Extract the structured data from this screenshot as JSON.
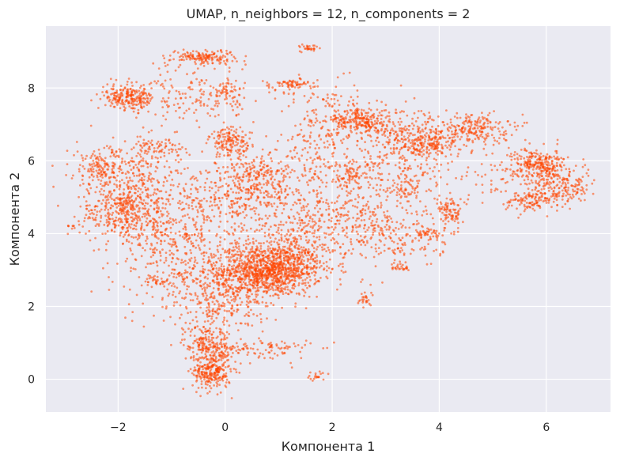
{
  "chart_data": {
    "type": "scatter",
    "title": "UMAP, n_neighbors = 12, n_components = 2",
    "xlabel": "Компонента 1",
    "ylabel": "Компонента 2",
    "xlim": [
      -3.35,
      7.2
    ],
    "ylim": [
      -0.9,
      9.7
    ],
    "x_ticks": [
      -2,
      0,
      2,
      4,
      6
    ],
    "y_ticks": [
      0,
      2,
      4,
      6,
      8
    ],
    "x_tick_labels": [
      "−2",
      "0",
      "2",
      "4",
      "6"
    ],
    "y_tick_labels": [
      "0",
      "2",
      "4",
      "6",
      "8"
    ],
    "grid": true,
    "legend": "none",
    "style": {
      "background": "#eaeaf2",
      "grid_color": "#ffffff",
      "point_color": "#ff4500",
      "point_alpha": 0.55
    },
    "clusters": [
      {
        "x": 0.9,
        "y": 3.0,
        "sx": 0.45,
        "sy": 0.35,
        "n": 900
      },
      {
        "x": 0.2,
        "y": 2.9,
        "sx": 0.6,
        "sy": 0.5,
        "n": 500
      },
      {
        "x": -0.25,
        "y": 0.2,
        "sx": 0.18,
        "sy": 0.25,
        "n": 260
      },
      {
        "x": -0.35,
        "y": 1.0,
        "sx": 0.22,
        "sy": 0.25,
        "n": 180
      },
      {
        "x": 0.6,
        "y": 0.8,
        "sx": 0.5,
        "sy": 0.18,
        "n": 120
      },
      {
        "x": -0.1,
        "y": 1.9,
        "sx": 0.45,
        "sy": 0.35,
        "n": 120
      },
      {
        "x": -2.0,
        "y": 4.6,
        "sx": 0.35,
        "sy": 0.35,
        "n": 260
      },
      {
        "x": -2.3,
        "y": 5.8,
        "sx": 0.3,
        "sy": 0.3,
        "n": 180
      },
      {
        "x": -1.6,
        "y": 5.2,
        "sx": 0.45,
        "sy": 0.5,
        "n": 260
      },
      {
        "x": -1.2,
        "y": 4.0,
        "sx": 0.5,
        "sy": 0.45,
        "n": 260
      },
      {
        "x": -1.7,
        "y": 7.7,
        "sx": 0.2,
        "sy": 0.15,
        "n": 140
      },
      {
        "x": -2.0,
        "y": 7.8,
        "sx": 0.15,
        "sy": 0.15,
        "n": 80
      },
      {
        "x": -1.3,
        "y": 6.3,
        "sx": 0.25,
        "sy": 0.2,
        "n": 90
      },
      {
        "x": -0.4,
        "y": 8.85,
        "sx": 0.3,
        "sy": 0.1,
        "n": 160
      },
      {
        "x": 0.05,
        "y": 7.9,
        "sx": 0.15,
        "sy": 0.15,
        "n": 60
      },
      {
        "x": -0.7,
        "y": 7.7,
        "sx": 0.5,
        "sy": 0.5,
        "n": 160
      },
      {
        "x": 0.1,
        "y": 6.5,
        "sx": 0.2,
        "sy": 0.2,
        "n": 150
      },
      {
        "x": 0.6,
        "y": 5.6,
        "sx": 0.3,
        "sy": 0.3,
        "n": 170
      },
      {
        "x": 0.0,
        "y": 5.0,
        "sx": 0.5,
        "sy": 0.5,
        "n": 260
      },
      {
        "x": 1.2,
        "y": 4.8,
        "sx": 0.5,
        "sy": 0.6,
        "n": 240
      },
      {
        "x": 1.2,
        "y": 8.1,
        "sx": 0.25,
        "sy": 0.08,
        "n": 70
      },
      {
        "x": 1.6,
        "y": 9.1,
        "sx": 0.1,
        "sy": 0.05,
        "n": 30
      },
      {
        "x": 2.5,
        "y": 7.1,
        "sx": 0.25,
        "sy": 0.2,
        "n": 220
      },
      {
        "x": 3.8,
        "y": 6.5,
        "sx": 0.3,
        "sy": 0.25,
        "n": 200
      },
      {
        "x": 4.6,
        "y": 6.9,
        "sx": 0.35,
        "sy": 0.2,
        "n": 220
      },
      {
        "x": 3.2,
        "y": 6.6,
        "sx": 0.45,
        "sy": 0.5,
        "n": 240
      },
      {
        "x": 2.4,
        "y": 5.6,
        "sx": 0.25,
        "sy": 0.2,
        "n": 100
      },
      {
        "x": 3.4,
        "y": 5.3,
        "sx": 0.3,
        "sy": 0.3,
        "n": 110
      },
      {
        "x": 2.3,
        "y": 4.4,
        "sx": 0.45,
        "sy": 0.45,
        "n": 200
      },
      {
        "x": 3.3,
        "y": 3.9,
        "sx": 0.5,
        "sy": 0.45,
        "n": 160
      },
      {
        "x": 4.2,
        "y": 4.6,
        "sx": 0.12,
        "sy": 0.2,
        "n": 90
      },
      {
        "x": 3.8,
        "y": 4.0,
        "sx": 0.15,
        "sy": 0.1,
        "n": 50
      },
      {
        "x": 5.9,
        "y": 5.9,
        "sx": 0.25,
        "sy": 0.2,
        "n": 260
      },
      {
        "x": 6.3,
        "y": 5.2,
        "sx": 0.3,
        "sy": 0.2,
        "n": 160
      },
      {
        "x": 5.7,
        "y": 4.9,
        "sx": 0.25,
        "sy": 0.15,
        "n": 110
      },
      {
        "x": 5.3,
        "y": 5.6,
        "sx": 0.45,
        "sy": 0.5,
        "n": 100
      },
      {
        "x": 2.6,
        "y": 2.2,
        "sx": 0.05,
        "sy": 0.1,
        "n": 25
      },
      {
        "x": 3.3,
        "y": 3.1,
        "sx": 0.1,
        "sy": 0.05,
        "n": 25
      },
      {
        "x": 1.7,
        "y": 0.1,
        "sx": 0.08,
        "sy": 0.08,
        "n": 20
      },
      {
        "x": -2.9,
        "y": 4.2,
        "sx": 0.05,
        "sy": 0.05,
        "n": 8
      },
      {
        "x": -1.2,
        "y": 2.7,
        "sx": 0.1,
        "sy": 0.08,
        "n": 20
      },
      {
        "x": 1.8,
        "y": 6.5,
        "sx": 0.45,
        "sy": 0.6,
        "n": 180
      },
      {
        "x": -0.8,
        "y": 2.7,
        "sx": 0.6,
        "sy": 0.6,
        "n": 130
      },
      {
        "x": 2.0,
        "y": 7.6,
        "sx": 0.4,
        "sy": 0.3,
        "n": 60
      },
      {
        "x": 1.5,
        "y": 3.6,
        "sx": 0.5,
        "sy": 0.4,
        "n": 160
      }
    ]
  }
}
